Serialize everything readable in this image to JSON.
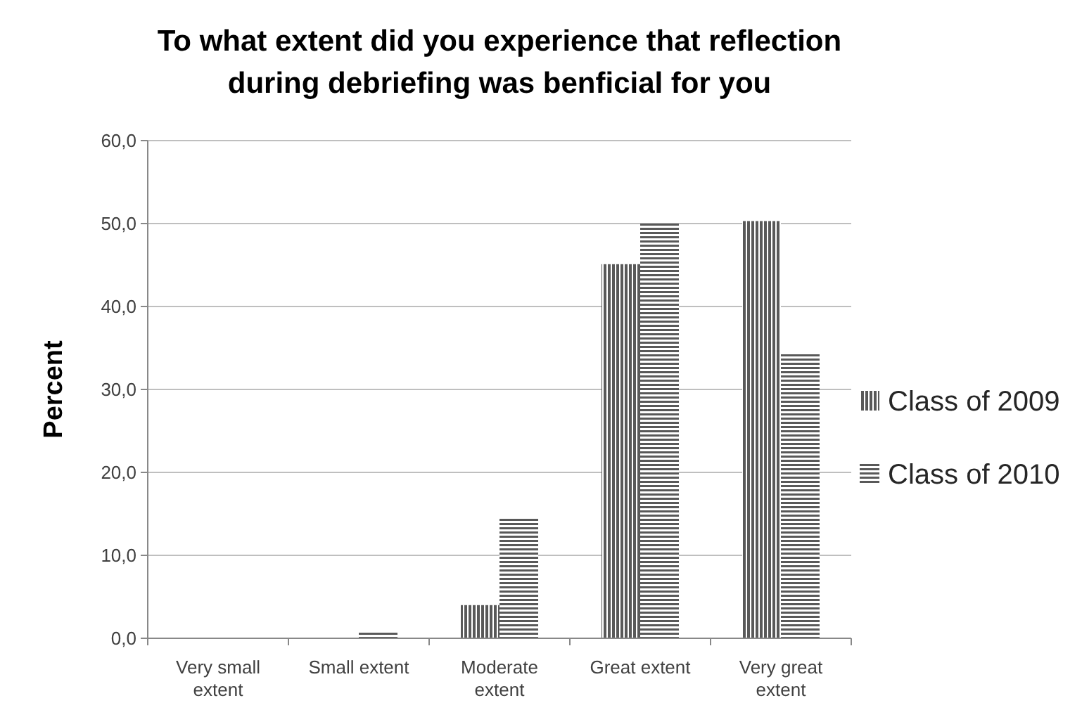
{
  "chart_data": {
    "type": "bar",
    "title": "To what extent did you experience that reflection during debriefing was benficial for you",
    "ylabel": "Percent",
    "categories": [
      "Very small extent",
      "Small extent",
      "Moderate extent",
      "Great extent",
      "Very great extent"
    ],
    "series": [
      {
        "name": "Class of 2009",
        "color": "#595959",
        "values": [
          0,
          0,
          4.0,
          45.1,
          50.3
        ]
      },
      {
        "name": "Class of 2010",
        "color": "#595959",
        "values": [
          0,
          0.8,
          14.6,
          50.0,
          34.4
        ]
      }
    ],
    "ylim": [
      0,
      60
    ],
    "yticks": [
      {
        "value": 0,
        "label": "0,0"
      },
      {
        "value": 10,
        "label": "10,0"
      },
      {
        "value": 20,
        "label": "20,0"
      },
      {
        "value": 30,
        "label": "30,0"
      },
      {
        "value": 40,
        "label": "40,0"
      },
      {
        "value": 50,
        "label": "50,0"
      },
      {
        "value": 60,
        "label": "60,0"
      }
    ],
    "grid": "y",
    "legend": "right"
  }
}
